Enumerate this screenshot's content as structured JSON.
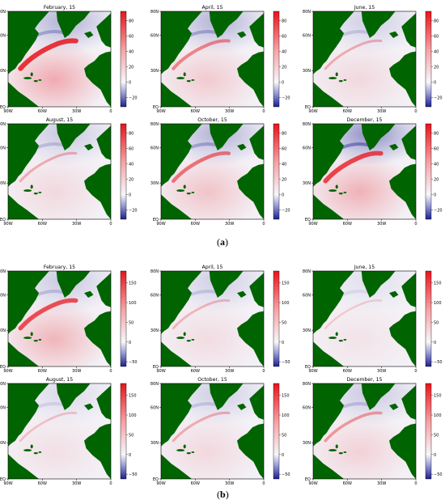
{
  "figure": {
    "part_a_label": "a",
    "part_b_label": "b"
  },
  "colors": {
    "land": "#006400",
    "ocean_neutral": "#f3f1f6",
    "warm": "#e8141b",
    "cool": "#1b1f8c"
  },
  "axes": {
    "lat_ticks": [
      "80N",
      "60N",
      "30N",
      "EQ"
    ],
    "lon_ticks": [
      "90W",
      "60W",
      "30W",
      "0"
    ]
  },
  "groups": [
    {
      "id": "a",
      "colorbar_ticks": [
        "80",
        "60",
        "40",
        "20",
        "0",
        "−20"
      ],
      "colorbar_range": [
        -32,
        92
      ],
      "panels": [
        {
          "title": "February, 15",
          "intensity": 1.0,
          "cool": 0.55
        },
        {
          "title": "April, 15",
          "intensity": 0.55,
          "cool": 0.55
        },
        {
          "title": "June, 15",
          "intensity": 0.35,
          "cool": 0.3
        },
        {
          "title": "August, 15",
          "intensity": 0.35,
          "cool": 0.35
        },
        {
          "title": "October, 15",
          "intensity": 0.65,
          "cool": 0.55
        },
        {
          "title": "December, 15",
          "intensity": 0.9,
          "cool": 0.85
        }
      ]
    },
    {
      "id": "b",
      "colorbar_ticks": [
        "150",
        "100",
        "50",
        "0",
        "−50"
      ],
      "colorbar_range": [
        -62,
        180
      ],
      "panels": [
        {
          "title": "February, 15",
          "intensity": 0.85,
          "cool": 0.35
        },
        {
          "title": "April, 15",
          "intensity": 0.3,
          "cool": 0.3
        },
        {
          "title": "June, 15",
          "intensity": 0.2,
          "cool": 0.15
        },
        {
          "title": "August, 15",
          "intensity": 0.25,
          "cool": 0.2
        },
        {
          "title": "October, 15",
          "intensity": 0.35,
          "cool": 0.3
        },
        {
          "title": "December, 15",
          "intensity": 0.45,
          "cool": 0.35
        }
      ]
    }
  ]
}
